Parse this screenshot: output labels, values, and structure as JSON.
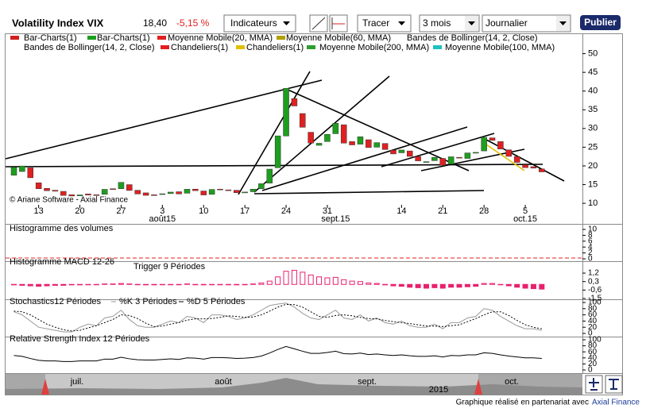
{
  "toolbar": {
    "title": "Volatility Index VIX",
    "last": "18,40",
    "change": "-5,15 %",
    "indicators": "Indicateurs",
    "draw": "Tracer",
    "period": "3 mois",
    "interval": "Journalier",
    "publish": "Publier"
  },
  "copyright": "© Ariane Software - Axial Finance",
  "footer": {
    "text": "Graphique réalisé en partenariat avec",
    "link": "Axial Finance"
  },
  "navigator": {
    "months": [
      "juil.",
      "août",
      "sept.",
      "oct."
    ],
    "year": "2015"
  },
  "chart_data": [
    {
      "type": "candlestick",
      "legend": [
        {
          "name": "Bar-Charts(1)",
          "color": "#d02020"
        },
        {
          "name": "Bar-Charts(1)",
          "color": "#1e9e1e"
        },
        {
          "name": "Moyenne Mobile(20, MMA)",
          "color": "#e02020"
        },
        {
          "name": "Moyenne Mobile(60, MMA)",
          "color": "#b0a000"
        },
        {
          "name": "Bandes de Bollinger(14, 2, Close)"
        },
        {
          "name": "Bandes de Bollinger(14, 2, Close)"
        },
        {
          "name": "Chandeliers(1)",
          "color": "#e02020"
        },
        {
          "name": "Chandeliers(1)",
          "color": "#e0c000"
        },
        {
          "name": "Moyenne Mobile(200, MMA)",
          "color": "#2e9e2e"
        },
        {
          "name": "Moyenne Mobile(100, MMA)",
          "color": "#20c0c0"
        }
      ],
      "open": [
        17.5,
        18.5,
        19.5,
        15.5,
        14.0,
        13.5,
        13.2,
        12.3,
        12.0,
        12.5,
        12.3,
        12.4,
        13.9,
        13.9,
        15.0,
        13.5,
        12.8,
        12.3,
        12.4,
        12.6,
        13.1,
        12.7,
        13.8,
        13.3,
        12.4,
        13.8,
        13.6,
        13.5,
        12.8,
        13.1,
        13.9,
        15.4,
        19.5,
        28.0,
        38.0,
        34.0,
        29.0,
        25.5,
        26.5,
        28.6,
        31.0,
        26.5,
        25.8,
        27.0,
        25.0,
        26.0,
        24.2,
        23.5,
        24.0,
        22.5,
        21.0,
        21.4,
        22.0,
        20.5,
        22.3,
        22.0,
        23.4,
        24.0,
        27.5,
        26.5,
        24.3,
        22.5,
        20.3,
        19.8,
        19.2
      ],
      "close": [
        19.66,
        19.97,
        16.83,
        13.9,
        13.37,
        13.23,
        12.11,
        11.95,
        12.25,
        12.22,
        12.12,
        13.74,
        13.74,
        15.6,
        13.44,
        12.5,
        12.13,
        12.12,
        12.56,
        13.0,
        12.51,
        13.77,
        13.39,
        12.23,
        13.71,
        13.61,
        13.49,
        12.83,
        13.02,
        13.79,
        15.25,
        19.14,
        28.03,
        40.74,
        36.02,
        30.32,
        26.1,
        26.05,
        28.43,
        31.4,
        26.09,
        25.61,
        27.8,
        24.9,
        26.23,
        24.37,
        23.2,
        24.25,
        22.54,
        21.35,
        21.14,
        22.28,
        20.14,
        22.44,
        22.13,
        23.47,
        23.62,
        27.63,
        26.83,
        24.5,
        22.55,
        20.94,
        19.54,
        19.4,
        18.4
      ],
      "up_color": "#1e9e1e",
      "down_color": "#e02020",
      "ylim": [
        9.6,
        55
      ],
      "yticks": [
        10,
        15,
        20,
        25,
        30,
        35,
        40,
        45,
        50
      ],
      "xticks": [
        {
          "value": 3,
          "label": "13"
        },
        {
          "value": 8,
          "label": "20"
        },
        {
          "value": 13,
          "label": "27"
        },
        {
          "value": 18,
          "label": "3"
        },
        {
          "value": 23,
          "label": "10"
        },
        {
          "value": 28,
          "label": "17"
        },
        {
          "value": 33,
          "label": "24"
        },
        {
          "value": 38,
          "label": "31"
        },
        {
          "value": 47,
          "label": "14"
        },
        {
          "value": 52,
          "label": "21"
        },
        {
          "value": 57,
          "label": "28"
        },
        {
          "value": 62,
          "label": "5"
        }
      ],
      "month_labels": [
        {
          "value": 18,
          "label": "août15"
        },
        {
          "value": 39,
          "label": "sept.15"
        },
        {
          "value": 62,
          "label": "oct.15"
        }
      ]
    },
    {
      "type": "bar",
      "title": "Histogramme des volumes",
      "ylim": [
        0,
        10
      ],
      "yticks": [
        10,
        8,
        6,
        4,
        2,
        0
      ],
      "baseline_color": "#e02020"
    },
    {
      "type": "bar",
      "title": "Histogramme MACD 12-26",
      "subtitle": "Trigger 9 Périodes",
      "color": "#e8206e",
      "values": [
        -0.05,
        -0.1,
        -0.15,
        -0.2,
        -0.15,
        -0.1,
        -0.1,
        -0.05,
        -0.05,
        0,
        0,
        0.05,
        0.05,
        0.1,
        0.05,
        0,
        -0.05,
        -0.05,
        0,
        0,
        0,
        0.05,
        0,
        -0.05,
        0,
        0,
        0,
        -0.05,
        0,
        0.05,
        0.15,
        0.35,
        0.8,
        1.4,
        1.5,
        1.3,
        1.0,
        0.8,
        0.7,
        0.75,
        0.5,
        0.35,
        0.3,
        0.15,
        0.1,
        -0.05,
        -0.15,
        -0.2,
        -0.3,
        -0.35,
        -0.4,
        -0.35,
        -0.4,
        -0.3,
        -0.3,
        -0.25,
        -0.2,
        0.1,
        0.1,
        0,
        -0.15,
        -0.3,
        -0.4,
        -0.45,
        -0.5
      ],
      "ylim": [
        -1.5,
        2.3
      ],
      "yticks": [
        {
          "value": 1.2,
          "label": "1,2"
        },
        {
          "value": 0.3,
          "label": "0,3"
        },
        {
          "value": -0.6,
          "label": "-0,6"
        },
        {
          "value": -1.5,
          "label": "-1,5"
        }
      ]
    },
    {
      "type": "line",
      "title": "Stochastics12 Périodes",
      "series": [
        {
          "name": "%K 3 Périodes",
          "color": "#999999",
          "values": [
            70,
            60,
            40,
            20,
            15,
            10,
            5,
            5,
            20,
            30,
            25,
            50,
            55,
            75,
            45,
            25,
            20,
            20,
            30,
            40,
            35,
            55,
            50,
            35,
            60,
            60,
            55,
            45,
            50,
            60,
            75,
            90,
            95,
            98,
            85,
            65,
            50,
            45,
            60,
            75,
            50,
            45,
            60,
            40,
            50,
            35,
            30,
            40,
            25,
            20,
            20,
            30,
            15,
            35,
            35,
            50,
            55,
            80,
            75,
            55,
            40,
            25,
            15,
            15,
            10
          ]
        },
        {
          "name": "%D 5 Périodes",
          "color": "#000000",
          "dashed": true,
          "values": [
            72,
            70,
            60,
            45,
            30,
            20,
            12,
            8,
            10,
            18,
            25,
            35,
            45,
            60,
            58,
            48,
            33,
            22,
            24,
            30,
            35,
            43,
            47,
            47,
            48,
            52,
            57,
            55,
            52,
            53,
            60,
            72,
            85,
            94,
            93,
            85,
            70,
            55,
            52,
            58,
            60,
            57,
            52,
            48,
            47,
            42,
            38,
            35,
            32,
            28,
            24,
            24,
            22,
            25,
            28,
            38,
            48,
            60,
            70,
            70,
            58,
            42,
            28,
            20,
            15
          ]
        }
      ],
      "ylim": [
        0,
        100
      ],
      "yticks": [
        100,
        80,
        60,
        40,
        20,
        0
      ]
    },
    {
      "type": "line",
      "title": "Relative Strength Index 12 Périodes",
      "series": [
        {
          "color": "#000000",
          "values": [
            48,
            45,
            38,
            32,
            30,
            30,
            28,
            28,
            30,
            30,
            30,
            36,
            36,
            42,
            37,
            34,
            33,
            33,
            35,
            37,
            35,
            40,
            39,
            36,
            41,
            41,
            40,
            38,
            39,
            41,
            46,
            56,
            68,
            78,
            70,
            62,
            55,
            55,
            58,
            62,
            54,
            53,
            56,
            51,
            53,
            50,
            48,
            50,
            47,
            45,
            45,
            47,
            43,
            48,
            47,
            50,
            50,
            57,
            55,
            50,
            46,
            43,
            40,
            40,
            38
          ]
        }
      ],
      "ylim": [
        0,
        100
      ],
      "yticks": [
        100,
        80,
        60,
        40,
        20,
        0
      ]
    }
  ]
}
